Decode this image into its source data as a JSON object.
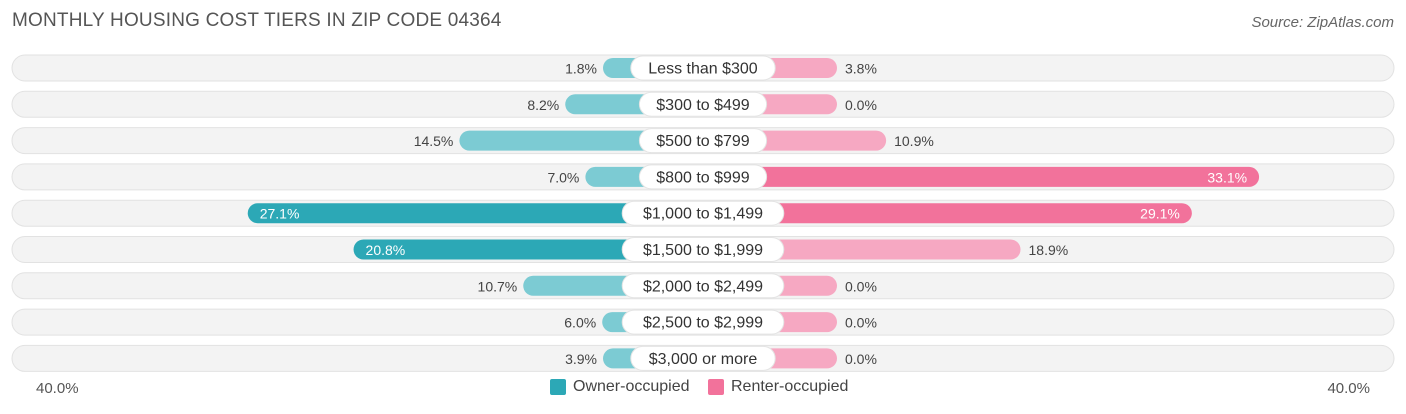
{
  "title": "MONTHLY HOUSING COST TIERS IN ZIP CODE 04364",
  "source": "Source: ZipAtlas.com",
  "colors": {
    "owner_light": "#7ccbd3",
    "owner_dark": "#2ca8b6",
    "renter_light": "#f6a8c2",
    "renter_dark": "#f2729b",
    "track": "#eeeeee"
  },
  "chart_data": {
    "type": "bar",
    "orientation": "horizontal-diverging",
    "title": "MONTHLY HOUSING COST TIERS IN ZIP CODE 04364",
    "categories": [
      "Less than $300",
      "$300 to $499",
      "$500 to $799",
      "$800 to $999",
      "$1,000 to $1,499",
      "$1,500 to $1,999",
      "$2,000 to $2,499",
      "$2,500 to $2,999",
      "$3,000 or more"
    ],
    "series": [
      {
        "name": "Owner-occupied",
        "values": [
          1.8,
          8.2,
          14.5,
          7.0,
          27.1,
          20.8,
          10.7,
          6.0,
          3.9
        ],
        "labels": [
          "1.8%",
          "8.2%",
          "14.5%",
          "7.0%",
          "27.1%",
          "20.8%",
          "10.7%",
          "6.0%",
          "3.9%"
        ]
      },
      {
        "name": "Renter-occupied",
        "values": [
          3.8,
          0.0,
          10.9,
          33.1,
          29.1,
          18.9,
          0.0,
          0.0,
          0.0
        ],
        "labels": [
          "3.8%",
          "0.0%",
          "10.9%",
          "33.1%",
          "29.1%",
          "18.9%",
          "0.0%",
          "0.0%",
          "0.0%"
        ]
      }
    ],
    "xlim": [
      -40,
      40
    ],
    "axis_left_label": "40.0%",
    "axis_right_label": "40.0%",
    "legend_position": "bottom-center"
  }
}
